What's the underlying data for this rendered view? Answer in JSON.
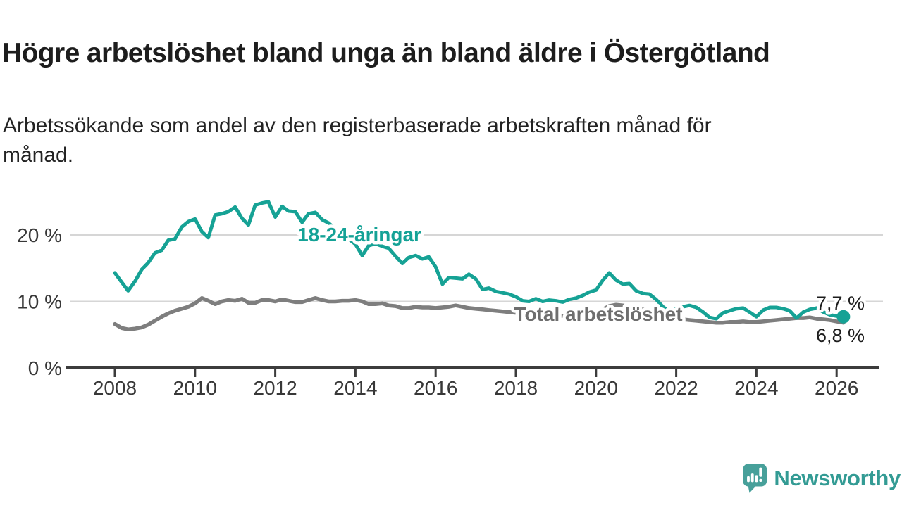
{
  "header": {
    "title": "Högre arbetslöshet bland unga än bland äldre i Östergötland",
    "subtitle_line1": "Arbetssökande som andel av den registerbaserade arbetskraften månad för",
    "subtitle_line2": "månad."
  },
  "branding": {
    "name": "Newsworthy",
    "icon": "bar-chart-speech-bubble-icon",
    "brand_color": "#3a9c95"
  },
  "chart_data": {
    "type": "line",
    "title": "Högre arbetslöshet bland unga än bland äldre i Östergötland",
    "subtitle": "Arbetssökande som andel av den registerbaserade arbetskraften månad för månad.",
    "grid": "horizontal",
    "legend_position": "inline-labels",
    "x_axis": {
      "min": 2008,
      "max": 2026.5,
      "ticks": [
        2008,
        2010,
        2012,
        2014,
        2016,
        2018,
        2020,
        2022,
        2024,
        2026
      ],
      "tick_labels": [
        "2008",
        "2010",
        "2012",
        "2014",
        "2016",
        "2018",
        "2020",
        "2022",
        "2024",
        "2026"
      ]
    },
    "y_axis": {
      "min": 0,
      "max": 26,
      "unit": "%",
      "ticks": [
        0,
        10,
        20
      ],
      "tick_labels": [
        "0 %",
        "10 %",
        "20 %"
      ]
    },
    "x": [
      2008.0,
      2008.17,
      2008.33,
      2008.5,
      2008.67,
      2008.83,
      2009.0,
      2009.17,
      2009.33,
      2009.5,
      2009.67,
      2009.83,
      2010.0,
      2010.17,
      2010.33,
      2010.5,
      2010.67,
      2010.83,
      2011.0,
      2011.17,
      2011.33,
      2011.5,
      2011.67,
      2011.83,
      2012.0,
      2012.17,
      2012.33,
      2012.5,
      2012.67,
      2012.83,
      2013.0,
      2013.17,
      2013.33,
      2013.5,
      2013.67,
      2013.83,
      2014.0,
      2014.17,
      2014.33,
      2014.5,
      2014.67,
      2014.83,
      2015.0,
      2015.17,
      2015.33,
      2015.5,
      2015.67,
      2015.83,
      2016.0,
      2016.17,
      2016.33,
      2016.5,
      2016.67,
      2016.83,
      2017.0,
      2017.17,
      2017.33,
      2017.5,
      2017.67,
      2017.83,
      2018.0,
      2018.17,
      2018.33,
      2018.5,
      2018.67,
      2018.83,
      2019.0,
      2019.17,
      2019.33,
      2019.5,
      2019.67,
      2019.83,
      2020.0,
      2020.17,
      2020.33,
      2020.5,
      2020.67,
      2020.83,
      2021.0,
      2021.17,
      2021.33,
      2021.5,
      2021.67,
      2021.83,
      2022.0,
      2022.17,
      2022.33,
      2022.5,
      2022.67,
      2022.83,
      2023.0,
      2023.17,
      2023.33,
      2023.5,
      2023.67,
      2023.83,
      2024.0,
      2024.17,
      2024.33,
      2024.5,
      2024.67,
      2024.83,
      2025.0,
      2025.17,
      2025.33,
      2025.5,
      2025.67,
      2025.83,
      2026.0,
      2026.17
    ],
    "series": [
      {
        "name": "18-24-åringar",
        "color": "#16a295",
        "label_color": "#14a296",
        "end_label": "7,7 %",
        "end_value": 7.7,
        "values": [
          14.3,
          12.9,
          11.6,
          13.0,
          14.8,
          15.8,
          17.3,
          17.7,
          19.2,
          19.4,
          21.2,
          22.0,
          22.4,
          20.5,
          19.6,
          23.0,
          23.2,
          23.5,
          24.2,
          22.5,
          21.5,
          24.5,
          24.8,
          25.0,
          22.7,
          24.3,
          23.6,
          23.5,
          21.9,
          23.2,
          23.4,
          22.3,
          21.8,
          20.9,
          20.1,
          19.4,
          18.6,
          16.9,
          18.4,
          18.7,
          18.3,
          18.0,
          16.8,
          15.7,
          16.6,
          16.9,
          16.4,
          16.7,
          15.2,
          12.6,
          13.6,
          13.5,
          13.4,
          14.1,
          13.4,
          11.8,
          12.0,
          11.5,
          11.3,
          11.1,
          10.7,
          10.1,
          10.0,
          10.4,
          10.0,
          10.2,
          10.1,
          9.9,
          10.3,
          10.5,
          10.9,
          11.4,
          11.7,
          13.2,
          14.3,
          13.2,
          12.6,
          12.7,
          11.6,
          11.2,
          11.1,
          10.3,
          9.2,
          8.5,
          8.9,
          9.2,
          9.4,
          9.1,
          8.4,
          7.6,
          7.4,
          8.3,
          8.6,
          8.9,
          9.0,
          8.4,
          7.7,
          8.7,
          9.1,
          9.1,
          8.9,
          8.6,
          7.5,
          8.4,
          8.8,
          9.0,
          8.4,
          8.0,
          7.8,
          7.7
        ]
      },
      {
        "name": "Total arbetslöshet",
        "color": "#7e7e7e",
        "label_color": "#6e6e6e",
        "end_label": "6,8 %",
        "end_value": 6.8,
        "values": [
          6.6,
          6.0,
          5.8,
          5.9,
          6.1,
          6.5,
          7.1,
          7.7,
          8.2,
          8.6,
          8.9,
          9.2,
          9.7,
          10.5,
          10.1,
          9.6,
          10.0,
          10.2,
          10.1,
          10.4,
          9.8,
          9.8,
          10.2,
          10.2,
          10.0,
          10.3,
          10.1,
          9.9,
          9.9,
          10.2,
          10.5,
          10.2,
          10.0,
          10.0,
          10.1,
          10.1,
          10.2,
          10.0,
          9.6,
          9.6,
          9.7,
          9.4,
          9.3,
          9.0,
          9.0,
          9.2,
          9.1,
          9.1,
          9.0,
          9.1,
          9.2,
          9.4,
          9.2,
          9.0,
          8.9,
          8.8,
          8.7,
          8.6,
          8.5,
          8.4,
          8.3,
          8.2,
          8.1,
          8.1,
          8.0,
          7.9,
          7.9,
          7.8,
          7.8,
          7.9,
          8.0,
          8.0,
          8.2,
          8.8,
          9.3,
          9.5,
          9.4,
          9.2,
          9.0,
          8.8,
          8.6,
          8.3,
          8.0,
          7.7,
          7.5,
          7.3,
          7.2,
          7.1,
          7.0,
          6.9,
          6.8,
          6.8,
          6.9,
          6.9,
          7.0,
          6.9,
          6.9,
          7.0,
          7.1,
          7.2,
          7.3,
          7.4,
          7.5,
          7.5,
          7.6,
          7.4,
          7.3,
          7.2,
          7.0,
          6.8
        ]
      }
    ]
  }
}
